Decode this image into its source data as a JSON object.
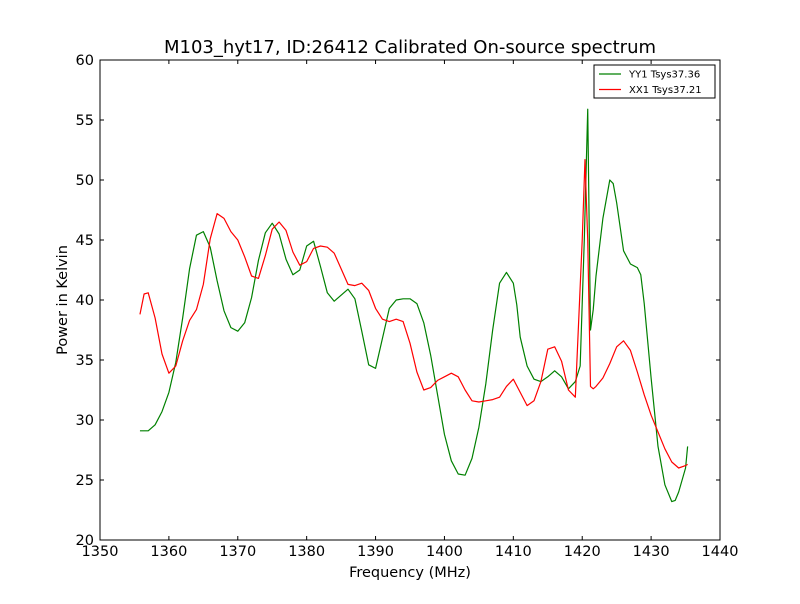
{
  "chart_data": {
    "type": "line",
    "title": "M103_hyt17, ID:26412 Calibrated On-source spectrum",
    "xlabel": "Frequency (MHz)",
    "ylabel": "Power in Kelvin",
    "xlim": [
      1350,
      1440
    ],
    "ylim": [
      20,
      60
    ],
    "xticks": [
      1350,
      1360,
      1370,
      1380,
      1390,
      1400,
      1410,
      1420,
      1430,
      1440
    ],
    "yticks": [
      20,
      25,
      30,
      35,
      40,
      45,
      50,
      55,
      60
    ],
    "grid": false,
    "legend_position": "top-right",
    "series": [
      {
        "name": "YY1 Tsys37.36",
        "color": "#008000",
        "x": [
          1355.8,
          1357,
          1358,
          1359,
          1360,
          1361,
          1362,
          1363,
          1364,
          1365,
          1366,
          1367,
          1368,
          1369,
          1370,
          1371,
          1372,
          1373,
          1374,
          1375,
          1376,
          1377,
          1378,
          1379,
          1380,
          1381,
          1382,
          1383,
          1384,
          1385,
          1386,
          1387,
          1388,
          1389,
          1390,
          1391,
          1392,
          1393,
          1394,
          1395,
          1396,
          1397,
          1398,
          1399,
          1400,
          1401,
          1402,
          1403,
          1404,
          1405,
          1406,
          1407,
          1408,
          1409,
          1410,
          1410.5,
          1411,
          1412,
          1413,
          1414,
          1415,
          1416,
          1417,
          1418,
          1419,
          1419.7,
          1420.3,
          1420.8,
          1421.2,
          1421.6,
          1422,
          1423,
          1424,
          1424.5,
          1425,
          1426,
          1427,
          1428,
          1428.5,
          1429,
          1430,
          1431,
          1432,
          1433,
          1433.5,
          1434,
          1435,
          1435.3
        ],
        "y": [
          29.1,
          29.1,
          29.6,
          30.7,
          32.3,
          34.8,
          38.5,
          42.6,
          45.4,
          45.7,
          44.4,
          41.6,
          39.1,
          37.7,
          37.4,
          38.1,
          40.2,
          43.3,
          45.6,
          46.4,
          45.5,
          43.4,
          42.1,
          42.5,
          44.5,
          44.9,
          42.8,
          40.6,
          39.9,
          40.4,
          40.9,
          40.1,
          37.4,
          34.6,
          34.3,
          36.8,
          39.3,
          40.0,
          40.1,
          40.1,
          39.7,
          38.1,
          35.4,
          32.1,
          28.8,
          26.6,
          25.5,
          25.4,
          26.8,
          29.4,
          33.0,
          37.5,
          41.4,
          42.3,
          41.4,
          39.6,
          36.9,
          34.5,
          33.4,
          33.2,
          33.6,
          34.1,
          33.6,
          32.6,
          33.2,
          34.5,
          45.0,
          55.9,
          37.5,
          39.2,
          42.0,
          46.8,
          50.0,
          49.7,
          48.1,
          44.1,
          43.0,
          42.7,
          42.1,
          39.7,
          33.5,
          27.8,
          24.6,
          23.2,
          23.3,
          24.0,
          26.0,
          27.8
        ]
      },
      {
        "name": "XX1 Tsys37.21",
        "color": "#ff0000",
        "x": [
          1355.8,
          1356.4,
          1357,
          1358,
          1359,
          1360,
          1361,
          1362,
          1363,
          1364,
          1365,
          1366,
          1367,
          1368,
          1369,
          1370,
          1371,
          1372,
          1373,
          1374,
          1375,
          1376,
          1377,
          1378,
          1379,
          1380,
          1381,
          1382,
          1383,
          1384,
          1385,
          1386,
          1387,
          1388,
          1389,
          1390,
          1391,
          1392,
          1393,
          1394,
          1395,
          1396,
          1397,
          1398,
          1399,
          1400,
          1401,
          1402,
          1403,
          1404,
          1405,
          1406,
          1407,
          1408,
          1409,
          1410,
          1411,
          1412,
          1413,
          1414,
          1415,
          1416,
          1417,
          1418,
          1419,
          1420,
          1420.4,
          1420.8,
          1421.2,
          1421.6,
          1422,
          1423,
          1424,
          1425,
          1426,
          1427,
          1428,
          1429,
          1430,
          1431,
          1432,
          1433,
          1434,
          1435,
          1435.3
        ],
        "y": [
          38.8,
          40.5,
          40.6,
          38.5,
          35.5,
          33.9,
          34.5,
          36.6,
          38.3,
          39.2,
          41.3,
          45.1,
          47.2,
          46.8,
          45.7,
          45.0,
          43.6,
          42.0,
          41.8,
          43.7,
          45.9,
          46.5,
          45.8,
          44.0,
          42.9,
          43.2,
          44.3,
          44.5,
          44.4,
          43.9,
          42.6,
          41.3,
          41.2,
          41.4,
          40.8,
          39.3,
          38.4,
          38.2,
          38.4,
          38.2,
          36.4,
          34.0,
          32.5,
          32.7,
          33.3,
          33.6,
          33.9,
          33.6,
          32.5,
          31.6,
          31.5,
          31.6,
          31.7,
          31.9,
          32.8,
          33.4,
          32.3,
          31.2,
          31.6,
          33.2,
          35.9,
          36.1,
          34.9,
          32.5,
          31.9,
          45.0,
          51.7,
          45.0,
          32.8,
          32.6,
          32.8,
          33.5,
          34.7,
          36.1,
          36.6,
          35.8,
          34.0,
          32.1,
          30.4,
          29.0,
          27.6,
          26.5,
          26.0,
          26.2,
          26.3
        ]
      }
    ]
  }
}
